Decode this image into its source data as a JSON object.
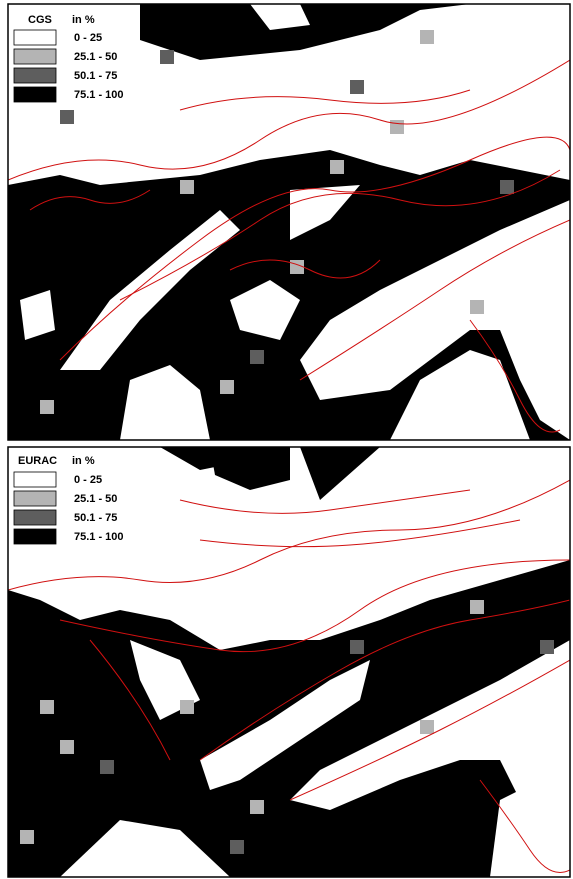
{
  "panels": [
    {
      "title": "CGS",
      "unit": "in %",
      "legend": [
        {
          "label": "0 - 25",
          "color": "#ffffff"
        },
        {
          "label": "25.1 - 50",
          "color": "#b4b4b4"
        },
        {
          "label": "50.1 - 75",
          "color": "#5e5e5e"
        },
        {
          "label": "75.1 - 100",
          "color": "#000000"
        }
      ]
    },
    {
      "title": "EURAC",
      "unit": "in %",
      "legend": [
        {
          "label": "0 - 25",
          "color": "#ffffff"
        },
        {
          "label": "25.1 - 50",
          "color": "#b4b4b4"
        },
        {
          "label": "50.1 - 75",
          "color": "#5e5e5e"
        },
        {
          "label": "75.1 - 100",
          "color": "#000000"
        }
      ]
    }
  ]
}
